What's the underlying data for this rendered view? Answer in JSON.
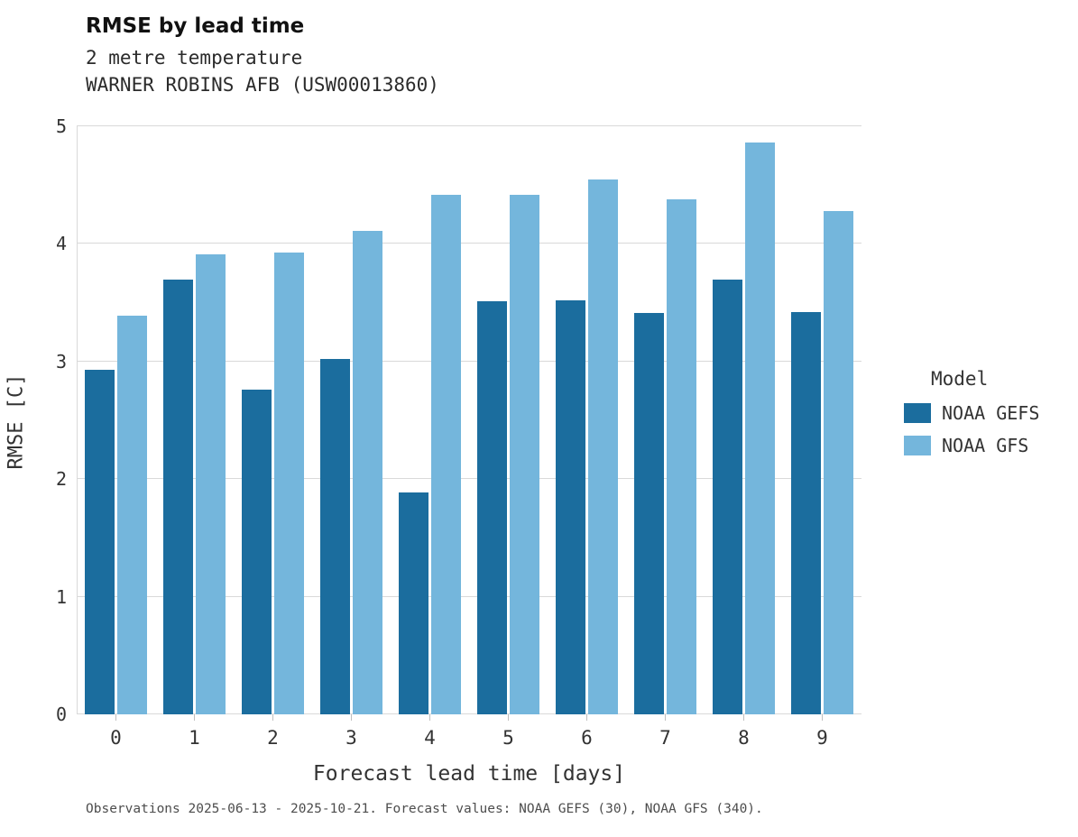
{
  "header": {
    "title": "RMSE by lead time",
    "subtitle1": "2 metre temperature",
    "subtitle2": "WARNER ROBINS AFB (USW00013860)"
  },
  "caption": "Observations 2025-06-13 - 2025-10-21. Forecast values: NOAA GEFS (30), NOAA GFS (340).",
  "legend": {
    "title": "Model"
  },
  "colors": {
    "gefs": "#1b6d9e",
    "gfs": "#74b6dc",
    "grid": "#d9d9d9"
  },
  "chart_data": {
    "type": "bar",
    "categories": [
      "0",
      "1",
      "2",
      "3",
      "4",
      "5",
      "6",
      "7",
      "8",
      "9"
    ],
    "series": [
      {
        "name": "NOAA GEFS",
        "color": "#1b6d9e",
        "values": [
          2.93,
          3.7,
          2.76,
          3.02,
          1.89,
          3.51,
          3.52,
          3.41,
          3.7,
          3.42
        ]
      },
      {
        "name": "NOAA GFS",
        "color": "#74b6dc",
        "values": [
          3.39,
          3.91,
          3.93,
          4.11,
          4.42,
          4.42,
          4.55,
          4.38,
          4.86,
          4.28
        ]
      }
    ],
    "title": "RMSE by lead time",
    "xlabel": "Forecast lead time [days]",
    "ylabel": "RMSE [C]",
    "ylim": [
      0,
      5
    ],
    "yticks": [
      0,
      1,
      2,
      3,
      4,
      5
    ],
    "grid": true,
    "legend_position": "right"
  }
}
